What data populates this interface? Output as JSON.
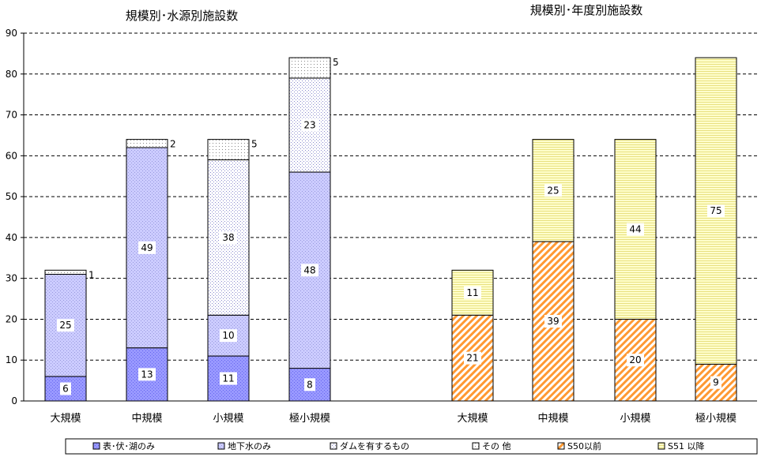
{
  "chart_data": [
    {
      "type": "bar",
      "stacked": true,
      "title": "規模別･水源別施設数",
      "categories": [
        "大規模",
        "中規模",
        "小規模",
        "極小規模"
      ],
      "series": [
        {
          "name": "表･伏･湖のみ",
          "values": [
            6,
            13,
            11,
            8
          ]
        },
        {
          "name": "地下水のみ",
          "values": [
            25,
            49,
            10,
            48
          ]
        },
        {
          "name": "ダムを有するもの",
          "values": [
            0,
            0,
            38,
            23
          ]
        },
        {
          "name": "その 他",
          "values": [
            1,
            2,
            5,
            5
          ]
        }
      ],
      "ylim": [
        0,
        90
      ],
      "yticks": [
        "0",
        "10",
        "20",
        "30",
        "40",
        "50",
        "60",
        "70",
        "80",
        "90"
      ],
      "grid": true
    },
    {
      "type": "bar",
      "stacked": true,
      "title": "規模別･年度別施設数",
      "categories": [
        "大規模",
        "中規模",
        "小規模",
        "極小規模"
      ],
      "series": [
        {
          "name": "S50以前",
          "values": [
            21,
            39,
            20,
            9
          ]
        },
        {
          "name": "S51 以降",
          "values": [
            11,
            25,
            44,
            75
          ]
        }
      ],
      "ylim": [
        0,
        90
      ],
      "grid": true
    }
  ],
  "legend": [
    "表･伏･湖のみ",
    "地下水のみ",
    "ダムを有するもの",
    "その 他",
    "S50以前",
    "S51 以降"
  ],
  "legend_position": "bottom",
  "colors": {
    "s1": "#9999ff",
    "s2": "#ccccff",
    "s3": "#ffffff",
    "s4": "#ffffff",
    "s5": "#ff9933",
    "s6": "#ffffcc"
  }
}
